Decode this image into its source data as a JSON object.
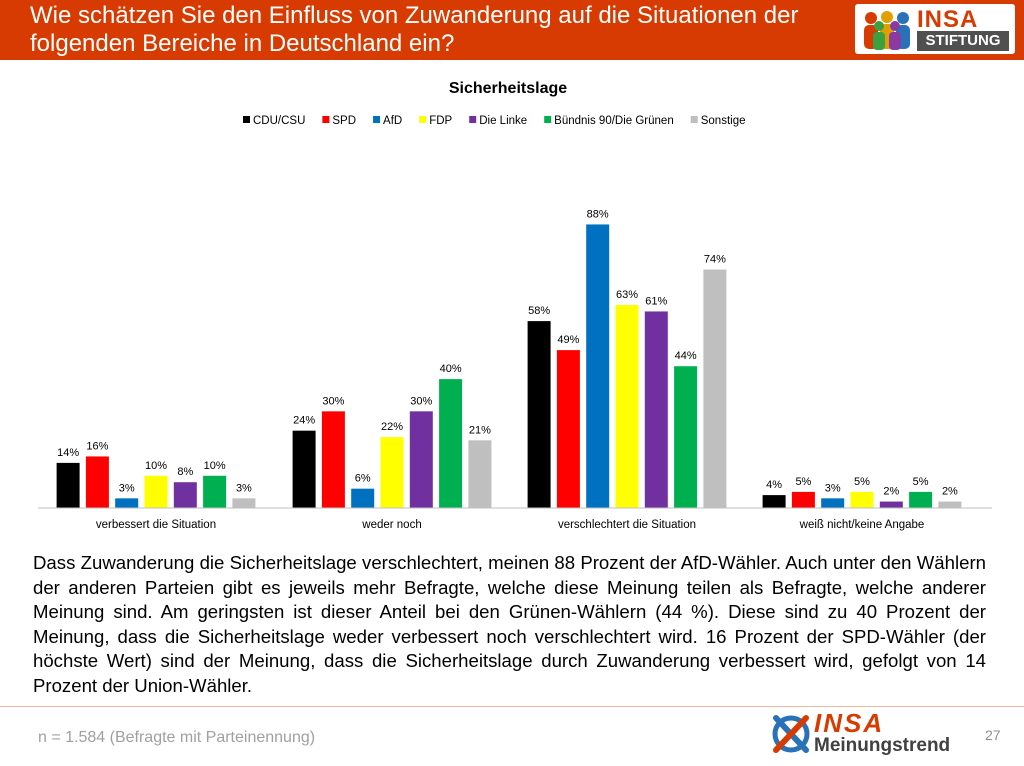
{
  "header": {
    "title": "Wie schätzen Sie den Einfluss von Zuwanderung auf die Situationen der folgenden Bereiche in Deutschland ein?",
    "background_color": "#d83b01"
  },
  "logo_top": {
    "word": "INSA",
    "subword": "STIFTUNG",
    "icon": "people-icon"
  },
  "chart_data": {
    "type": "bar",
    "title": "Sicherheitslage",
    "xlabel": "",
    "ylabel": "",
    "legend_position": "top",
    "grid": false,
    "ylim": [
      0,
      100
    ],
    "categories": [
      "verbessert die Situation",
      "weder noch",
      "verschlechtert die Situation",
      "weiß nicht/keine Angabe"
    ],
    "series": [
      {
        "name": "CDU/CSU",
        "color": "#000000",
        "values": [
          14,
          24,
          58,
          4
        ]
      },
      {
        "name": "SPD",
        "color": "#ff0000",
        "values": [
          16,
          30,
          49,
          5
        ]
      },
      {
        "name": "AfD",
        "color": "#0070c0",
        "values": [
          3,
          6,
          88,
          3
        ]
      },
      {
        "name": "FDP",
        "color": "#ffff00",
        "values": [
          10,
          22,
          63,
          5
        ]
      },
      {
        "name": "Die Linke",
        "color": "#7030a0",
        "values": [
          8,
          30,
          61,
          2
        ]
      },
      {
        "name": "Bündnis 90/Die Grünen",
        "color": "#00b050",
        "values": [
          10,
          40,
          44,
          5
        ]
      },
      {
        "name": "Sonstige",
        "color": "#bfbfbf",
        "values": [
          3,
          21,
          74,
          2
        ]
      }
    ]
  },
  "body_text": "Dass Zuwanderung die Sicherheitslage verschlechtert, meinen 88 Prozent der AfD-Wähler. Auch unter den Wählern der anderen Parteien gibt es jeweils mehr Befragte, welche diese Meinung teilen als Befragte, welche anderer Meinung sind. Am geringsten ist dieser Anteil bei den Grünen-Wählern (44 %). Diese sind zu 40 Prozent der Meinung, dass die Sicherheitslage weder verbessert noch verschlechtert wird. 16 Prozent der SPD-Wähler (der höchste Wert) sind der Meinung, dass die Sicherheitslage durch Zuwanderung verbessert wird, gefolgt von 14 Prozent der Union-Wähler.",
  "footer": {
    "footnote": "n = 1.584 (Befragte mit Parteinennung)",
    "logo_word": "INSA",
    "logo_subword": "Meinungstrend",
    "logo_icon": "x-check-icon",
    "page_number": "27"
  }
}
